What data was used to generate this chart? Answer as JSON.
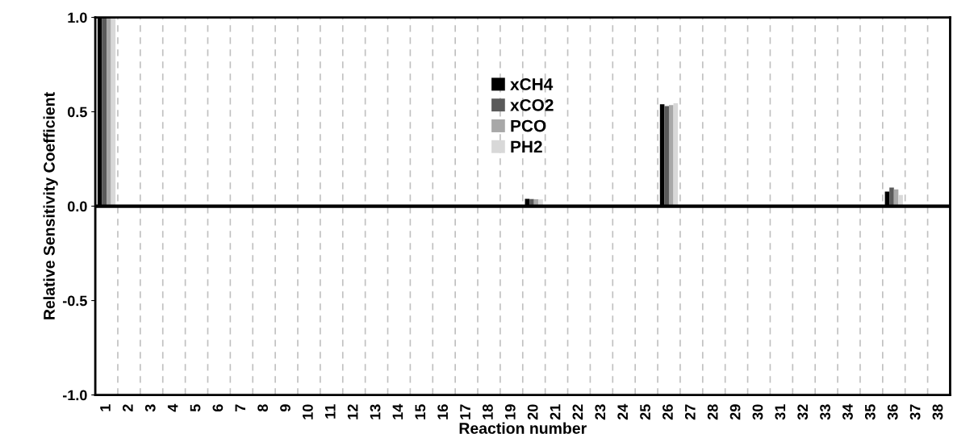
{
  "chart_data": {
    "type": "bar",
    "xlabel": "Reaction number",
    "ylabel": "Relative Sensitivity Coefficient",
    "categories": [
      "1",
      "2",
      "3",
      "4",
      "5",
      "6",
      "7",
      "8",
      "9",
      "10",
      "11",
      "12",
      "13",
      "14",
      "15",
      "16",
      "17",
      "18",
      "19",
      "20",
      "21",
      "22",
      "23",
      "24",
      "25",
      "26",
      "27",
      "28",
      "29",
      "30",
      "31",
      "32",
      "33",
      "34",
      "35",
      "36",
      "37",
      "38"
    ],
    "series": [
      {
        "name": "xCH4",
        "color": "#000000",
        "values": [
          1.0,
          0,
          0.005,
          0.005,
          0,
          0,
          0,
          0,
          0,
          0.005,
          0,
          0,
          0,
          0,
          0.005,
          0,
          0,
          0,
          0,
          0.039,
          0.005,
          0.005,
          0,
          0.005,
          0.005,
          0.54,
          0.005,
          0,
          0,
          0,
          0,
          0,
          0.005,
          0,
          0,
          0.077,
          0,
          0
        ]
      },
      {
        "name": "xCO2",
        "color": "#5a5a5a",
        "values": [
          1.0,
          0,
          0.004,
          0.004,
          0,
          0,
          0,
          0,
          0,
          0.004,
          0,
          0,
          0,
          0,
          0.004,
          0,
          0,
          0,
          0,
          0.038,
          0.004,
          0.004,
          0,
          0.004,
          0.004,
          0.53,
          0.004,
          0,
          0,
          0,
          0,
          0,
          0.004,
          0,
          0,
          0.099,
          0,
          0
        ]
      },
      {
        "name": "PCO",
        "color": "#a8a8a8",
        "values": [
          1.0,
          0,
          0.003,
          0.003,
          0,
          0,
          0,
          0,
          0,
          0.003,
          0,
          0,
          0,
          0,
          0.003,
          0,
          0,
          0,
          0,
          0.037,
          0.003,
          0.003,
          0,
          0.003,
          0.003,
          0.535,
          0.003,
          0,
          0,
          0,
          0,
          0,
          0.003,
          0,
          0,
          0.089,
          0,
          0
        ]
      },
      {
        "name": "PH2",
        "color": "#d8d8d8",
        "values": [
          1.0,
          0,
          0.002,
          0.002,
          0,
          0,
          0,
          0,
          0,
          0.002,
          0,
          0,
          0,
          0,
          0.002,
          0,
          0,
          0,
          0,
          0.035,
          0.002,
          0.002,
          0,
          0.002,
          0.002,
          0.545,
          0.002,
          0,
          0,
          0,
          0,
          0,
          0.002,
          0,
          0,
          0.059,
          0,
          0
        ]
      }
    ],
    "ylim": [
      -1.0,
      1.0
    ],
    "yticks": [
      {
        "value": -1.0,
        "label": "-1.0"
      },
      {
        "value": -0.5,
        "label": "-0.5"
      },
      {
        "value": 0,
        "label": "0.0"
      },
      {
        "value": 0.5,
        "label": "0.5"
      },
      {
        "value": 1.0,
        "label": "1.0"
      }
    ],
    "ref_lines": [
      {
        "axis": "y",
        "value": 0,
        "color": "#000000"
      }
    ],
    "grid": "x",
    "legend": "top"
  }
}
